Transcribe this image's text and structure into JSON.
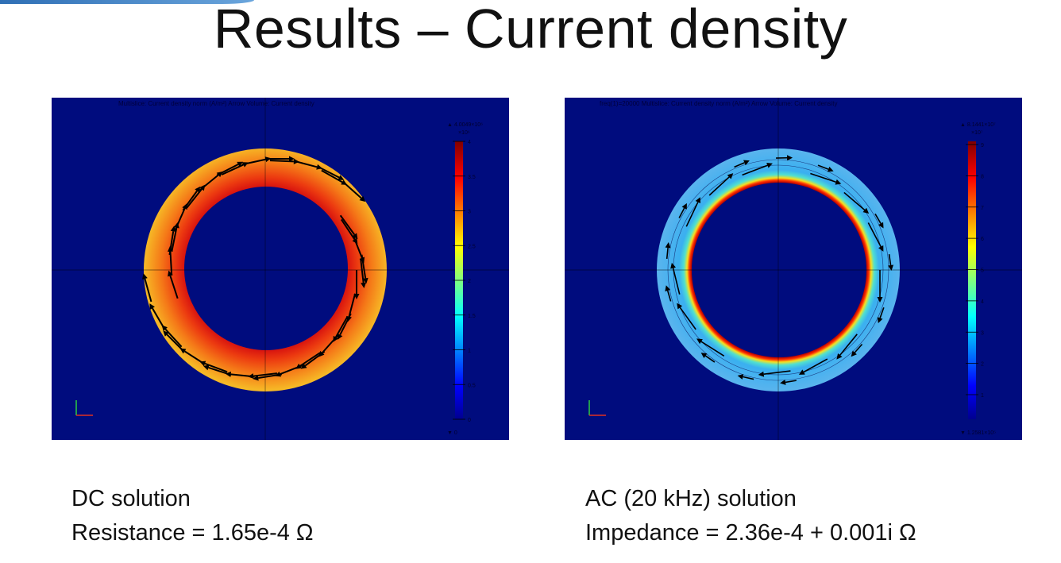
{
  "slide": {
    "title": "Results – Current density"
  },
  "plots": [
    {
      "header": "Multislice: Current density norm (A/m²)  Arrow Volume: Current density",
      "colorbar": {
        "max_label": "▲ 4.0049×10⁶",
        "unit": "×10⁶",
        "ticks": [
          "4",
          "3.5",
          "3",
          "2.5",
          "2",
          "1.5",
          "1",
          "0.5",
          "0"
        ],
        "min_label": "▼ 0",
        "colormap": "jet"
      },
      "ring_colors": {
        "outer": "#f5b321",
        "inner": "#e01e12"
      },
      "caption": [
        "DC solution",
        "Resistance = 1.65e-4 Ω"
      ]
    },
    {
      "header": "freq(1)=20000   Multislice: Current density norm (A/m²)  Arrow Volume: Current density",
      "colorbar": {
        "max_label": "▲ 8.1441×10⁷",
        "unit": "×10⁷",
        "ticks": [
          "9",
          "8",
          "7",
          "6",
          "5",
          "4",
          "3",
          "2",
          "1"
        ],
        "min_label": "▼ 1.2581×10⁵",
        "colormap": "jet"
      },
      "ring_colors": {
        "outer": "#4fb3ee",
        "inner": "#d01010"
      },
      "caption": [
        "AC (20 kHz) solution",
        "Impedance = 2.36e-4 + 0.001i Ω"
      ]
    }
  ],
  "colors": {
    "plot_background": "#000c7e"
  }
}
